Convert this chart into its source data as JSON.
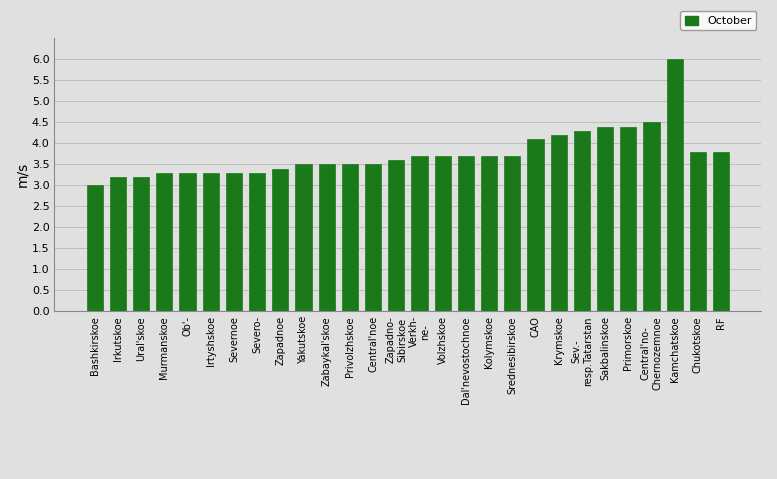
{
  "values": [
    3.0,
    3.2,
    3.2,
    3.3,
    3.3,
    3.3,
    3.3,
    3.3,
    3.4,
    3.5,
    3.5,
    3.5,
    3.5,
    3.6,
    3.7,
    3.7,
    3.7,
    3.7,
    3.7,
    4.1,
    4.2,
    4.3,
    4.4,
    4.4,
    4.5,
    6.0,
    3.8,
    3.8
  ],
  "bar_color": "#1a7a1a",
  "ylabel": "m/s",
  "legend_label": "October",
  "ylim_max": 6.5,
  "yticks": [
    0,
    0.5,
    1.0,
    1.5,
    2.0,
    2.5,
    3.0,
    3.5,
    4.0,
    4.5,
    5.0,
    5.5,
    6.0
  ],
  "bg_color": "#e0e0e0",
  "tick_labels": [
    "Bashkirskoe",
    "Irkutskoe",
    "Ural'skoe",
    "Murmanskoe",
    "Ob'-",
    "Irtyshskoe",
    "Severnoe",
    "Severo-",
    "Zapadnoe",
    "Yakutskoe",
    "Zabaykal'skoe",
    "Privolzhskoe",
    "Central'noe",
    "Zapadno-\nSibirskoe",
    "Verkh-\nne-",
    "Volzhskoe",
    "Dal'nevostochnoe",
    "Kolymskoe",
    "Srednesibirskoe",
    "CAO",
    "Krymskoe",
    "Sev.-\nresp.Tatarstan",
    "Sakbalinskoe",
    "Primorskoe",
    "Central'no-\nChernozemnoe",
    "Kamchatskoe",
    "Chukotskoe",
    "RF"
  ]
}
